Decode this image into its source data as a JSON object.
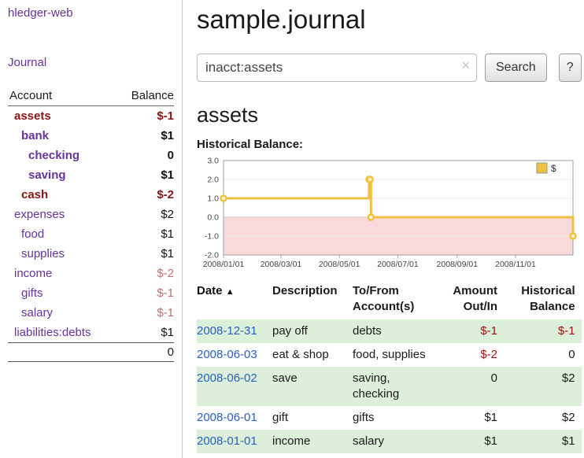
{
  "colors": {
    "link_purple": "#663399",
    "negative_dark_red": "#8b1414",
    "negative_soft_red": "#c56d6d",
    "negative_red": "#a31111",
    "date_link_blue": "#2a5fc0",
    "row_green": "#dcefd8",
    "chart_series_gold": "#edc240",
    "chart_negative_pink": "#f9d9d9"
  },
  "sidebar": {
    "app_title": "hledger-web",
    "journal_label": "Journal",
    "accounts": {
      "header_account": "Account",
      "header_balance": "Balance",
      "rows": [
        {
          "name": "assets",
          "balance": "$-1",
          "indent": 0,
          "bold": true,
          "name_color": "neg",
          "bal_color": "neg"
        },
        {
          "name": "bank",
          "balance": "$1",
          "indent": 1,
          "bold": true,
          "name_color": "purple",
          "bal_color": "ink"
        },
        {
          "name": "checking",
          "balance": "0",
          "indent": 2,
          "bold": true,
          "name_color": "purple",
          "bal_color": "ink"
        },
        {
          "name": "saving",
          "balance": "$1",
          "indent": 2,
          "bold": true,
          "name_color": "purple",
          "bal_color": "ink"
        },
        {
          "name": "cash",
          "balance": "$-2",
          "indent": 1,
          "bold": true,
          "name_color": "neg",
          "bal_color": "neg"
        },
        {
          "name": "expenses",
          "balance": "$2",
          "indent": 0,
          "bold": false,
          "name_color": "purple",
          "bal_color": "ink"
        },
        {
          "name": "food",
          "balance": "$1",
          "indent": 1,
          "bold": false,
          "name_color": "purple",
          "bal_color": "ink"
        },
        {
          "name": "supplies",
          "balance": "$1",
          "indent": 1,
          "bold": false,
          "name_color": "purple",
          "bal_color": "ink"
        },
        {
          "name": "income",
          "balance": "$-2",
          "indent": 0,
          "bold": false,
          "name_color": "purple",
          "bal_color": "negsoft"
        },
        {
          "name": "gifts",
          "balance": "$-1",
          "indent": 1,
          "bold": false,
          "name_color": "purple",
          "bal_color": "negsoft"
        },
        {
          "name": "salary",
          "balance": "$-1",
          "indent": 1,
          "bold": false,
          "name_color": "purple",
          "bal_color": "negsoft"
        },
        {
          "name": "liabilities:debts",
          "balance": "$1",
          "indent": 0,
          "bold": false,
          "name_color": "purple",
          "bal_color": "ink"
        }
      ],
      "total": "0"
    }
  },
  "main": {
    "title": "sample.journal",
    "search": {
      "value": "inacct:assets",
      "clear_icon": "×",
      "button_label": "Search",
      "help_label": "?"
    },
    "account_heading": "assets"
  },
  "chart_data": {
    "type": "line",
    "step": "after",
    "title": "Historical Balance:",
    "series": [
      {
        "name": "$",
        "color": "#edc240",
        "points": [
          [
            "2008-01-01",
            1
          ],
          [
            "2008-06-01",
            2
          ],
          [
            "2008-06-02",
            2
          ],
          [
            "2008-06-03",
            0
          ],
          [
            "2008-12-31",
            -1
          ]
        ]
      }
    ],
    "x_domain": [
      "2008-01-01",
      "2008-12-31"
    ],
    "x_ticks": [
      "2008/01/01",
      "2008/03/01",
      "2008/05/01",
      "2008/07/01",
      "2008/09/01",
      "2008/11/01"
    ],
    "y_ticks": [
      3.0,
      2.0,
      1.0,
      0.0,
      -1.0,
      -2.0
    ],
    "ylim": [
      -2,
      3
    ],
    "negative_region_color": "#f9d9d9",
    "legend": {
      "label": "$",
      "position": "top-right"
    }
  },
  "register": {
    "headers": {
      "date": "Date",
      "sort_icon": "▲",
      "description": "Description",
      "accounts": "To/From Account(s)",
      "amount": "Amount Out/In",
      "balance": "Historical Balance"
    },
    "rows": [
      {
        "date": "2008-12-31",
        "description": "pay off",
        "accounts": "debts",
        "amount": "$-1",
        "balance": "$-1",
        "amount_negative": true,
        "balance_negative": true,
        "shaded": true
      },
      {
        "date": "2008-06-03",
        "description": "eat & shop",
        "accounts": "food, supplies",
        "amount": "$-2",
        "balance": "0",
        "amount_negative": true,
        "balance_negative": false,
        "shaded": false
      },
      {
        "date": "2008-06-02",
        "description": "save",
        "accounts": "saving, checking",
        "amount": "0",
        "balance": "$2",
        "amount_negative": false,
        "balance_negative": false,
        "shaded": true
      },
      {
        "date": "2008-06-01",
        "description": "gift",
        "accounts": "gifts",
        "amount": "$1",
        "balance": "$2",
        "amount_negative": false,
        "balance_negative": false,
        "shaded": false
      },
      {
        "date": "2008-01-01",
        "description": "income",
        "accounts": "salary",
        "amount": "$1",
        "balance": "$1",
        "amount_negative": false,
        "balance_negative": false,
        "shaded": true
      }
    ]
  }
}
